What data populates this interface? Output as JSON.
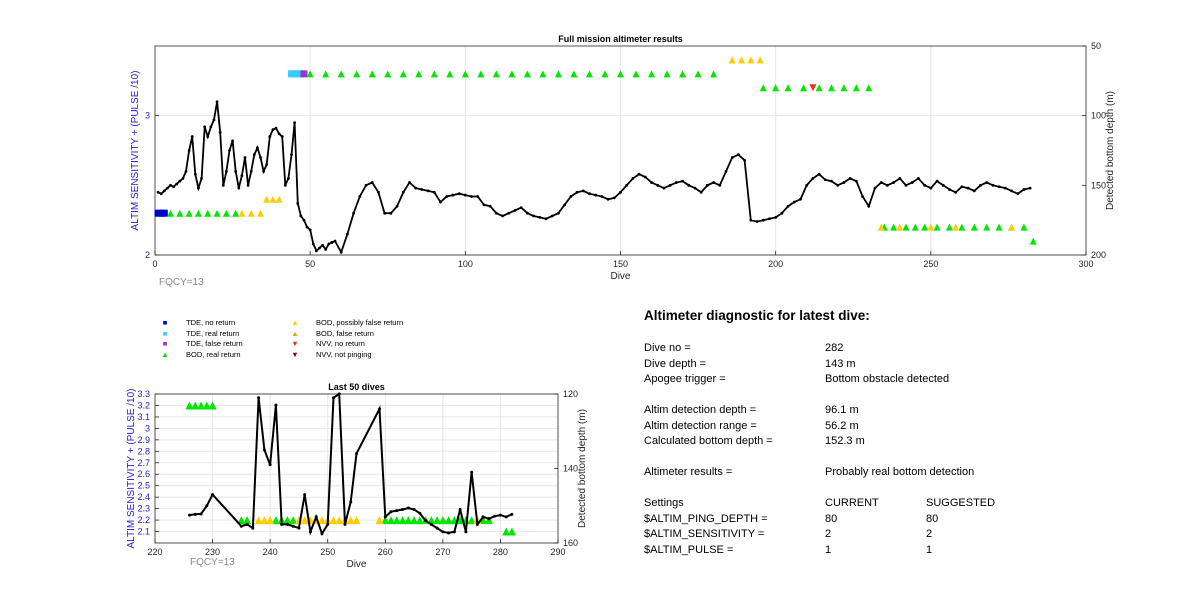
{
  "colors": {
    "axis": "#262626",
    "ylabel_left": "#1f1fcc",
    "grid": "#e6e6e6",
    "line": "#000000",
    "tde_no": "#0000cc",
    "tde_real": "#33ccff",
    "tde_false": "#9933cc",
    "bod_real": "#00e600",
    "bod_possibly": "#ffcc00",
    "bod_false": "#ff9900",
    "nvv_no": "#e63319",
    "nvv_not": "#8b0000"
  },
  "main": {
    "fqcy": "FQCY=13"
  },
  "recent": {
    "fqcy": "FQCY=13"
  },
  "legend": [
    {
      "label": "TDE, no return",
      "color_key": "tde_no",
      "symbol": "square"
    },
    {
      "label": "TDE, real return",
      "color_key": "tde_real",
      "symbol": "square"
    },
    {
      "label": "TDE, false return",
      "color_key": "tde_false",
      "symbol": "square"
    },
    {
      "label": "BOD, real return",
      "color_key": "bod_real",
      "symbol": "triangle-up"
    },
    {
      "label": "BOD, possibly false return",
      "color_key": "bod_possibly",
      "symbol": "triangle-up"
    },
    {
      "label": "BOD, false return",
      "color_key": "bod_false",
      "symbol": "triangle-up"
    },
    {
      "label": "NVV, no return",
      "color_key": "nvv_no",
      "symbol": "triangle-down"
    },
    {
      "label": "NVV, not pinging",
      "color_key": "nvv_not",
      "symbol": "triangle-down"
    }
  ],
  "diagnostic": {
    "title": "Altimeter diagnostic for latest dive:",
    "rows": [
      {
        "label": "Dive no =",
        "value": "282"
      },
      {
        "label": "Dive depth =",
        "value": "143 m"
      },
      {
        "label": "Apogee trigger =",
        "value": "Bottom obstacle detected"
      },
      {
        "label": "Altim detection depth =",
        "value": "96.1 m"
      },
      {
        "label": "Altim detection range =",
        "value": "56.2 m"
      },
      {
        "label": "Calculated bottom depth =",
        "value": "152.3 m"
      },
      {
        "label": "Altimeter results =",
        "value": "Probably real bottom detection"
      }
    ],
    "settings": {
      "header": [
        "Settings",
        "CURRENT",
        "SUGGESTED"
      ],
      "rows": [
        {
          "name": "$ALTIM_PING_DEPTH =",
          "current": "80",
          "suggested": "80"
        },
        {
          "name": "$ALTIM_SENSITIVITY =",
          "current": "2",
          "suggested": "2"
        },
        {
          "name": "$ALTIM_PULSE =",
          "current": "1",
          "suggested": "1"
        }
      ]
    }
  },
  "chart_data": [
    {
      "type": "line",
      "title": "Full mission altimeter results",
      "xlabel": "Dive",
      "ylabel": "ALTIM SENSITIVITY + (PULSE /10)",
      "y2label": "Detected bottom depth (m)",
      "xlim": [
        0,
        300
      ],
      "ylim": [
        2,
        3.5
      ],
      "y2lim": [
        200,
        50
      ],
      "y2_reversed": true,
      "xticks": [
        0,
        50,
        100,
        150,
        200,
        250,
        300
      ],
      "yticks": [
        2,
        3
      ],
      "y2ticks": [
        50,
        100,
        150,
        200
      ],
      "grid": true,
      "series": [
        {
          "axis": "y2",
          "x": [
            1,
            2,
            3,
            4,
            5,
            6,
            7,
            8,
            9,
            10,
            11,
            12,
            13,
            14,
            15,
            16,
            17,
            18,
            19,
            20,
            21,
            22,
            23,
            24,
            25,
            26,
            27,
            28,
            29,
            30,
            31,
            32,
            33,
            34,
            35,
            36,
            37,
            38,
            39,
            40,
            41,
            42,
            43,
            44,
            45,
            46,
            47,
            48,
            49,
            50,
            51,
            52,
            53,
            54,
            55,
            56,
            57,
            58,
            60,
            62,
            64,
            66,
            68,
            70,
            72,
            74,
            76,
            78,
            80,
            82,
            84,
            86,
            88,
            90,
            92,
            94,
            96,
            98,
            100,
            102,
            104,
            106,
            108,
            110,
            112,
            114,
            116,
            118,
            120,
            122,
            124,
            126,
            128,
            130,
            132,
            134,
            136,
            138,
            140,
            142,
            144,
            146,
            148,
            150,
            152,
            154,
            156,
            158,
            160,
            162,
            164,
            166,
            168,
            170,
            172,
            174,
            176,
            178,
            180,
            182,
            184,
            186,
            188,
            190,
            192,
            194,
            196,
            198,
            200,
            202,
            204,
            206,
            208,
            210,
            212,
            214,
            216,
            218,
            220,
            222,
            224,
            226,
            228,
            230,
            232,
            234,
            236,
            238,
            240,
            242,
            244,
            246,
            248,
            250,
            252,
            254,
            256,
            258,
            260,
            262,
            264,
            266,
            268,
            270,
            272,
            274,
            276,
            278,
            280,
            282
          ],
          "y": [
            155,
            156,
            154,
            152,
            150,
            151,
            149,
            147,
            145,
            140,
            125,
            115,
            142,
            152,
            145,
            108,
            115,
            108,
            103,
            90,
            112,
            150,
            140,
            125,
            118,
            140,
            152,
            143,
            130,
            150,
            140,
            128,
            123,
            130,
            140,
            135,
            115,
            110,
            109,
            113,
            115,
            150,
            145,
            128,
            105,
            163,
            172,
            175,
            180,
            182,
            192,
            197,
            195,
            193,
            196,
            192,
            191,
            190,
            198,
            185,
            170,
            158,
            150,
            148,
            155,
            170,
            170,
            165,
            155,
            148,
            152,
            153,
            154,
            155,
            162,
            158,
            157,
            156,
            157,
            158,
            158,
            164,
            165,
            170,
            172,
            170,
            168,
            166,
            170,
            172,
            173,
            174,
            172,
            170,
            164,
            158,
            155,
            154,
            156,
            157,
            158,
            160,
            159,
            155,
            150,
            145,
            142,
            144,
            148,
            150,
            152,
            150,
            148,
            147,
            150,
            152,
            155,
            150,
            148,
            150,
            140,
            130,
            128,
            132,
            175,
            176,
            175,
            174,
            173,
            170,
            165,
            162,
            160,
            150,
            145,
            142,
            146,
            147,
            150,
            148,
            145,
            147,
            158,
            165,
            152,
            148,
            150,
            148,
            145,
            150,
            148,
            145,
            150,
            152,
            147,
            150,
            153,
            155,
            151,
            152,
            154,
            150,
            148,
            150,
            151,
            152,
            154,
            156,
            153,
            152
          ]
        }
      ],
      "markers": [
        {
          "name": "TDE, no return",
          "x": [
            1,
            2,
            3
          ],
          "y": [
            2.3,
            2.3,
            2.3
          ]
        },
        {
          "name": "TDE, real return",
          "x": [
            44,
            45,
            46,
            47
          ],
          "y": [
            3.3,
            3.3,
            3.3,
            3.3
          ]
        },
        {
          "name": "TDE, false return",
          "x": [
            48
          ],
          "y": [
            3.3
          ]
        },
        {
          "name": "BOD, real return",
          "x": [
            5,
            8,
            11,
            14,
            17,
            20,
            23,
            26,
            50,
            55,
            60,
            65,
            70,
            75,
            80,
            85,
            90,
            95,
            100,
            105,
            110,
            115,
            120,
            125,
            130,
            135,
            140,
            145,
            150,
            155,
            160,
            165,
            170,
            175,
            180,
            196,
            200,
            204,
            209,
            214,
            218,
            222,
            226,
            230,
            235,
            238,
            242,
            245,
            248,
            252,
            256,
            260,
            264,
            268,
            272,
            276,
            280,
            283
          ],
          "y": [
            2.3,
            2.3,
            2.3,
            2.3,
            2.3,
            2.3,
            2.3,
            2.3,
            3.3,
            3.3,
            3.3,
            3.3,
            3.3,
            3.3,
            3.3,
            3.3,
            3.3,
            3.3,
            3.3,
            3.3,
            3.3,
            3.3,
            3.3,
            3.3,
            3.3,
            3.3,
            3.3,
            3.3,
            3.3,
            3.3,
            3.3,
            3.3,
            3.3,
            3.3,
            3.3,
            3.2,
            3.2,
            3.2,
            3.2,
            3.2,
            3.2,
            3.2,
            3.2,
            3.2,
            2.2,
            2.2,
            2.2,
            2.2,
            2.2,
            2.2,
            2.2,
            2.2,
            2.2,
            2.2,
            2.2,
            2.2,
            2.2,
            2.1
          ]
        },
        {
          "name": "BOD, possibly false return",
          "x": [
            28,
            31,
            34,
            36,
            38,
            40,
            186,
            189,
            192,
            195,
            234,
            240,
            250,
            258,
            276
          ],
          "y": [
            2.3,
            2.3,
            2.3,
            2.4,
            2.4,
            2.4,
            3.4,
            3.4,
            3.4,
            3.4,
            2.2,
            2.2,
            2.2,
            2.2,
            2.2
          ]
        },
        {
          "name": "NVV, no return",
          "x": [
            212
          ],
          "y": [
            3.2
          ]
        }
      ]
    },
    {
      "type": "line",
      "title": "Last 50 dives",
      "xlabel": "Dive",
      "ylabel": "ALTIM SENSITIVITY + (PULSE /10)",
      "y2label": "Detected bottom depth (m)",
      "xlim": [
        220,
        290
      ],
      "ylim": [
        2.0,
        3.3
      ],
      "y2lim": [
        160,
        120
      ],
      "y2_reversed": true,
      "xticks": [
        220,
        230,
        240,
        250,
        260,
        270,
        280,
        290
      ],
      "yticks": [
        2.1,
        2.2,
        2.3,
        2.4,
        2.5,
        2.6,
        2.7,
        2.8,
        2.9,
        3,
        3.1,
        3.2,
        3.3
      ],
      "y2ticks": [
        120,
        140,
        160
      ],
      "grid": true,
      "series": [
        {
          "axis": "y2",
          "x": [
            226,
            227,
            228,
            229,
            230,
            235,
            236,
            237,
            238,
            239,
            240,
            241,
            242,
            243,
            244,
            245,
            246,
            247,
            248,
            249,
            250,
            251,
            252,
            253,
            254,
            255,
            259,
            260,
            261,
            262,
            263,
            264,
            265,
            266,
            267,
            268,
            269,
            270,
            271,
            272,
            273,
            274,
            275,
            276,
            277,
            278,
            279,
            280,
            281,
            282
          ],
          "y": [
            152.5,
            152.3,
            152.2,
            150,
            147,
            155.5,
            155,
            156,
            121,
            135,
            139,
            123,
            155,
            155,
            155.5,
            156,
            147,
            157,
            153,
            157.5,
            155,
            121,
            120,
            155,
            149,
            136,
            124,
            153,
            151.6,
            151.3,
            151,
            150.6,
            151,
            152,
            154,
            155,
            156,
            157,
            157.3,
            157,
            151,
            157,
            141,
            155,
            153,
            153.5,
            152.8,
            152.5,
            153,
            152.3
          ]
        }
      ],
      "markers": [
        {
          "name": "BOD, real return",
          "x": [
            226,
            227,
            228,
            229,
            230,
            235,
            236,
            241,
            242,
            243,
            244,
            260,
            261,
            262,
            263,
            264,
            265,
            266,
            267,
            268,
            269,
            270,
            271,
            272,
            273,
            274,
            275,
            277,
            278,
            281,
            282
          ],
          "y": [
            3.2,
            3.2,
            3.2,
            3.2,
            3.2,
            2.2,
            2.2,
            2.2,
            2.2,
            2.2,
            2.2,
            2.2,
            2.2,
            2.2,
            2.2,
            2.2,
            2.2,
            2.2,
            2.2,
            2.2,
            2.2,
            2.2,
            2.2,
            2.2,
            2.2,
            2.2,
            2.2,
            2.2,
            2.2,
            2.1,
            2.1
          ]
        },
        {
          "name": "BOD, possibly false return",
          "x": [
            238,
            239,
            240,
            245,
            246,
            247,
            248,
            249,
            250,
            251,
            252,
            253,
            254,
            255,
            259,
            276
          ],
          "y": [
            2.2,
            2.2,
            2.2,
            2.2,
            2.2,
            2.2,
            2.2,
            2.2,
            2.2,
            2.2,
            2.2,
            2.2,
            2.2,
            2.2,
            2.2,
            2.2
          ]
        }
      ]
    }
  ]
}
